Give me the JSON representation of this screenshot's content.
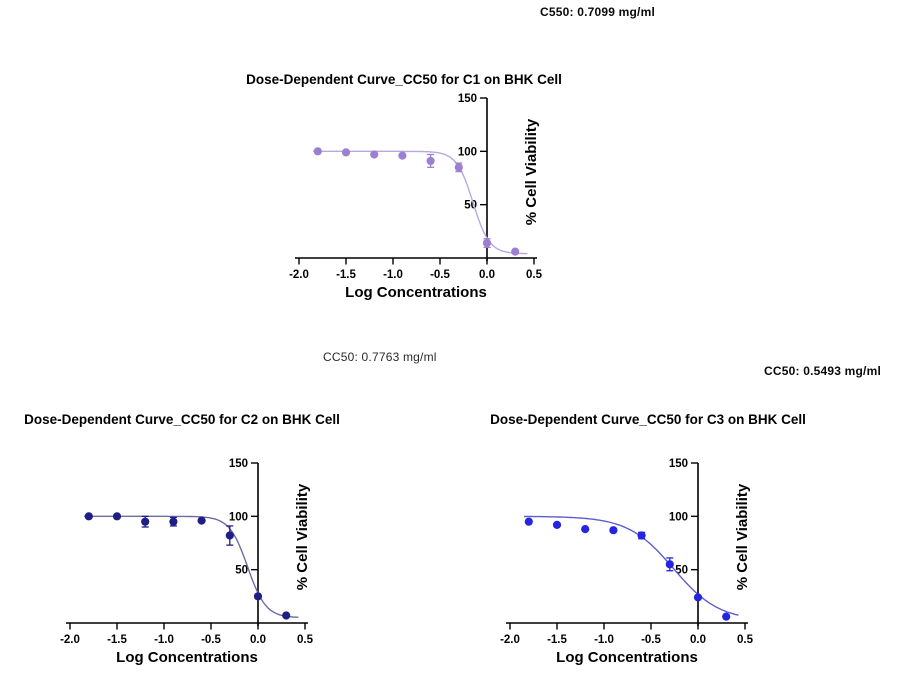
{
  "page": {
    "background": "#ffffff"
  },
  "annotations": [
    {
      "text": "C550: 0.7099 mg/ml",
      "for_chart": "C1",
      "bold": true
    },
    {
      "text": "CC50: 0.7763 mg/ml",
      "for_chart": "C2",
      "bold": false
    },
    {
      "text": "CC50: 0.5493 mg/ml",
      "for_chart": "C3",
      "bold": true
    }
  ],
  "chart_data": [
    {
      "type": "scatter",
      "title": "Dose-Dependent Curve_CC50 for C1 on BHK Cell",
      "xlabel": "Log Concentrations",
      "ylabel": "% Cell Viability",
      "xlim": [
        -2.0,
        0.5
      ],
      "ylim": [
        0,
        150
      ],
      "xticks": [
        -2.0,
        -1.5,
        -1.0,
        -0.5,
        0.0,
        0.5
      ],
      "yticks": [
        50,
        100,
        150
      ],
      "x": [
        -1.8,
        -1.5,
        -1.2,
        -0.9,
        -0.6,
        -0.3,
        0.0,
        0.3
      ],
      "y": [
        100,
        99,
        97,
        96,
        91,
        85,
        14,
        6
      ],
      "yerr": [
        0,
        0,
        0,
        0,
        6,
        4,
        4,
        0
      ],
      "fit": {
        "top": 100,
        "bottom": 4,
        "logcc50": -0.1488,
        "hill": 5
      },
      "cc50_mg_ml": 0.7099,
      "point_color": "#9c80d0",
      "line_color": "#b9a7e0"
    },
    {
      "type": "scatter",
      "title": "Dose-Dependent Curve_CC50 for C2 on BHK Cell",
      "xlabel": "Log Concentrations",
      "ylabel": "% Cell Viability",
      "xlim": [
        -2.0,
        0.5
      ],
      "ylim": [
        0,
        150
      ],
      "xticks": [
        -2.0,
        -1.5,
        -1.0,
        -0.5,
        0.0,
        0.5
      ],
      "yticks": [
        50,
        100,
        150
      ],
      "x": [
        -1.8,
        -1.5,
        -1.2,
        -0.9,
        -0.6,
        -0.3,
        0.0,
        0.3
      ],
      "y": [
        100,
        100,
        95,
        95,
        96,
        82,
        25,
        7
      ],
      "yerr": [
        0,
        0,
        5,
        4,
        0,
        9,
        0,
        0
      ],
      "fit": {
        "top": 100,
        "bottom": 5,
        "logcc50": -0.11,
        "hill": 4.5
      },
      "cc50_mg_ml": 0.7763,
      "point_color": "#1e1e85",
      "line_color": "#6c6ca5"
    },
    {
      "type": "scatter",
      "title": "Dose-Dependent Curve_CC50 for C3 on BHK Cell",
      "xlabel": "Log Concentrations",
      "ylabel": "% Cell Viability",
      "xlim": [
        -2.0,
        0.5
      ],
      "ylim": [
        0,
        150
      ],
      "xticks": [
        -2.0,
        -1.5,
        -1.0,
        -0.5,
        0.0,
        0.5
      ],
      "yticks": [
        50,
        100,
        150
      ],
      "x": [
        -1.8,
        -1.5,
        -1.2,
        -0.9,
        -0.6,
        -0.3,
        0.0,
        0.3
      ],
      "y": [
        95,
        92,
        88,
        87,
        82,
        55,
        24,
        6
      ],
      "yerr": [
        0,
        0,
        0,
        0,
        3,
        6,
        0,
        0
      ],
      "fit": {
        "top": 100,
        "bottom": 2,
        "logcc50": -0.2602,
        "hill": 1.8
      },
      "cc50_mg_ml": 0.5493,
      "point_color": "#2525e0",
      "line_color": "#5d5dd0"
    }
  ]
}
